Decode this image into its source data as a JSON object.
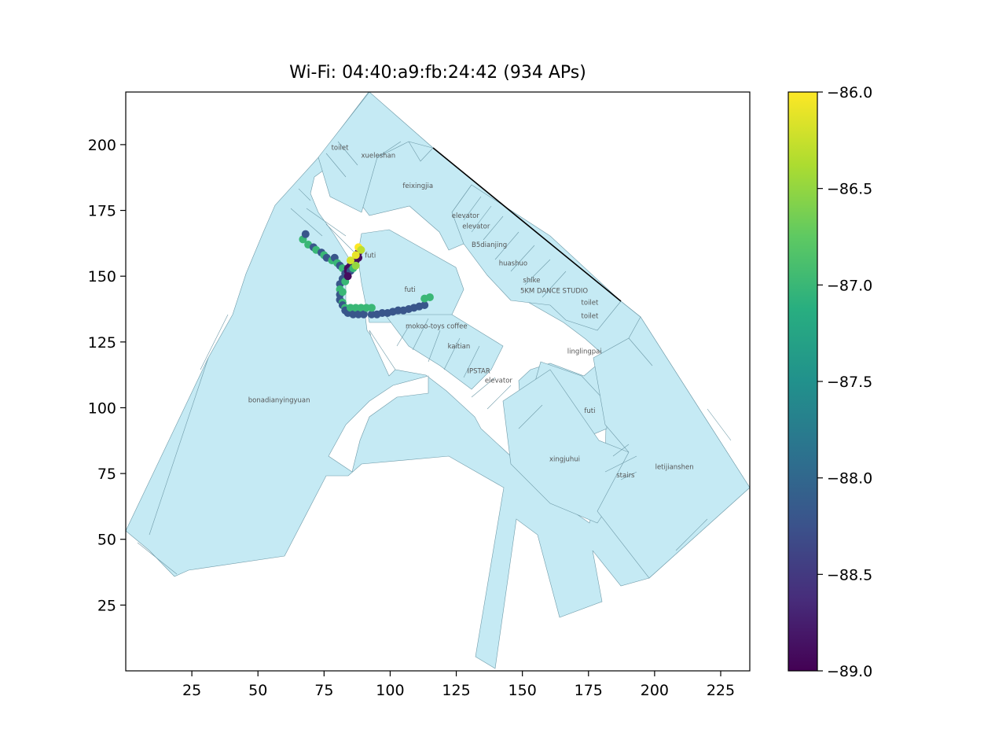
{
  "figure": {
    "title": "Wi-Fi: 04:40:a9:fb:24:42 (934 APs)"
  },
  "map_axes": {
    "xlim": [
      0,
      236
    ],
    "ylim": [
      0,
      220
    ],
    "x_ticks": [
      {
        "value": 25,
        "label": "25"
      },
      {
        "value": 50,
        "label": "50"
      },
      {
        "value": 75,
        "label": "75"
      },
      {
        "value": 100,
        "label": "100"
      },
      {
        "value": 125,
        "label": "125"
      },
      {
        "value": 150,
        "label": "150"
      },
      {
        "value": 175,
        "label": "175"
      },
      {
        "value": 200,
        "label": "200"
      },
      {
        "value": 225,
        "label": "225"
      }
    ],
    "y_ticks": [
      {
        "value": 25,
        "label": "25"
      },
      {
        "value": 50,
        "label": "50"
      },
      {
        "value": 75,
        "label": "75"
      },
      {
        "value": 100,
        "label": "100"
      },
      {
        "value": 125,
        "label": "125"
      },
      {
        "value": 150,
        "label": "150"
      },
      {
        "value": 175,
        "label": "175"
      },
      {
        "value": 200,
        "label": "200"
      }
    ]
  },
  "colorbar": {
    "colormap": "viridis",
    "range": [
      -89.0,
      -86.0
    ],
    "ticks": [
      {
        "value": -86.0,
        "label": "−86.0"
      },
      {
        "value": -86.5,
        "label": "−86.5"
      },
      {
        "value": -87.0,
        "label": "−87.0"
      },
      {
        "value": -87.5,
        "label": "−87.5"
      },
      {
        "value": -88.0,
        "label": "−88.0"
      },
      {
        "value": -88.5,
        "label": "−88.5"
      },
      {
        "value": -89.0,
        "label": "−89.0"
      }
    ]
  },
  "colors": {
    "floor_fill": "#c5eaf4",
    "floor_stroke": "#6e9aa8",
    "shop_label": "#555555"
  },
  "shop_labels": [
    {
      "text": "toilet",
      "x": 81,
      "y": 199
    },
    {
      "text": "xueleshan",
      "x": 95.5,
      "y": 196
    },
    {
      "text": "feixingjia",
      "x": 110.5,
      "y": 184.5
    },
    {
      "text": "elevator",
      "x": 128.5,
      "y": 173
    },
    {
      "text": "elevator",
      "x": 132.5,
      "y": 169
    },
    {
      "text": "B5dianjing",
      "x": 137.5,
      "y": 162
    },
    {
      "text": "futi",
      "x": 92.5,
      "y": 158
    },
    {
      "text": "huashuo",
      "x": 146.5,
      "y": 155
    },
    {
      "text": "shike",
      "x": 153.5,
      "y": 148.5
    },
    {
      "text": "futi",
      "x": 107.5,
      "y": 145
    },
    {
      "text": "5KM DANCE STUDIO",
      "x": 162,
      "y": 144.5
    },
    {
      "text": "toilet",
      "x": 175.5,
      "y": 140
    },
    {
      "text": "toilet",
      "x": 175.5,
      "y": 135
    },
    {
      "text": "mokoo-toys coffee",
      "x": 117.5,
      "y": 131
    },
    {
      "text": "kaitian",
      "x": 126,
      "y": 123.5
    },
    {
      "text": "linglingpai",
      "x": 173.5,
      "y": 121.5
    },
    {
      "text": "IPSTAR",
      "x": 133.5,
      "y": 114
    },
    {
      "text": "elevator",
      "x": 141,
      "y": 110.5
    },
    {
      "text": "bonadianyingyuan",
      "x": 58,
      "y": 103
    },
    {
      "text": "futi",
      "x": 175.5,
      "y": 99
    },
    {
      "text": "xingjuhui",
      "x": 166,
      "y": 80.5
    },
    {
      "text": "letijianshen",
      "x": 207.5,
      "y": 77.5
    },
    {
      "text": "stairs",
      "x": 189,
      "y": 74.5
    }
  ],
  "rssi_points": [
    {
      "x": 67,
      "y": 164,
      "rssi": -87.0
    },
    {
      "x": 68,
      "y": 166,
      "rssi": -88.2
    },
    {
      "x": 69,
      "y": 162,
      "rssi": -87.0
    },
    {
      "x": 71,
      "y": 161,
      "rssi": -88.2
    },
    {
      "x": 72,
      "y": 160,
      "rssi": -87.0
    },
    {
      "x": 74,
      "y": 159,
      "rssi": -88.2
    },
    {
      "x": 75,
      "y": 158,
      "rssi": -87.0
    },
    {
      "x": 76,
      "y": 157,
      "rssi": -88.2
    },
    {
      "x": 78,
      "y": 156,
      "rssi": -87.0
    },
    {
      "x": 79,
      "y": 157,
      "rssi": -88.2
    },
    {
      "x": 80,
      "y": 155,
      "rssi": -87.0
    },
    {
      "x": 81,
      "y": 154,
      "rssi": -88.2
    },
    {
      "x": 82,
      "y": 153,
      "rssi": -87.0
    },
    {
      "x": 83,
      "y": 151,
      "rssi": -88.2
    },
    {
      "x": 82,
      "y": 149,
      "rssi": -88.2
    },
    {
      "x": 81,
      "y": 147,
      "rssi": -88.2
    },
    {
      "x": 81,
      "y": 145,
      "rssi": -87.0
    },
    {
      "x": 81,
      "y": 143,
      "rssi": -88.2
    },
    {
      "x": 81,
      "y": 141,
      "rssi": -88.2
    },
    {
      "x": 82,
      "y": 140,
      "rssi": -87.0
    },
    {
      "x": 82,
      "y": 139,
      "rssi": -88.2
    },
    {
      "x": 83,
      "y": 138,
      "rssi": -87.0
    },
    {
      "x": 83,
      "y": 137,
      "rssi": -88.2
    },
    {
      "x": 84,
      "y": 136,
      "rssi": -88.2
    },
    {
      "x": 85,
      "y": 138,
      "rssi": -87.0
    },
    {
      "x": 86,
      "y": 135.5,
      "rssi": -88.2
    },
    {
      "x": 87,
      "y": 138,
      "rssi": -87.0
    },
    {
      "x": 88,
      "y": 135.5,
      "rssi": -88.2
    },
    {
      "x": 89,
      "y": 138,
      "rssi": -87.0
    },
    {
      "x": 90,
      "y": 135.5,
      "rssi": -88.2
    },
    {
      "x": 91,
      "y": 138,
      "rssi": -87.0
    },
    {
      "x": 93,
      "y": 135.5,
      "rssi": -88.2
    },
    {
      "x": 93,
      "y": 138,
      "rssi": -87.0
    },
    {
      "x": 95,
      "y": 135.5,
      "rssi": -88.2
    },
    {
      "x": 97,
      "y": 136,
      "rssi": -88.2
    },
    {
      "x": 99,
      "y": 136,
      "rssi": -88.2
    },
    {
      "x": 101,
      "y": 136.5,
      "rssi": -88.2
    },
    {
      "x": 103,
      "y": 137,
      "rssi": -88.2
    },
    {
      "x": 105,
      "y": 137,
      "rssi": -88.2
    },
    {
      "x": 107,
      "y": 137.5,
      "rssi": -88.2
    },
    {
      "x": 109,
      "y": 138,
      "rssi": -88.2
    },
    {
      "x": 111,
      "y": 138.5,
      "rssi": -88.2
    },
    {
      "x": 113,
      "y": 139,
      "rssi": -88.2
    },
    {
      "x": 113,
      "y": 141.5,
      "rssi": -87.0
    },
    {
      "x": 115,
      "y": 142,
      "rssi": -87.0
    },
    {
      "x": 82,
      "y": 144,
      "rssi": -87.0
    },
    {
      "x": 83,
      "y": 148,
      "rssi": -87.0
    },
    {
      "x": 84,
      "y": 152,
      "rssi": -88.9
    },
    {
      "x": 84,
      "y": 153,
      "rssi": -88.9
    },
    {
      "x": 85,
      "y": 154,
      "rssi": -88.9
    },
    {
      "x": 85,
      "y": 152,
      "rssi": -88.2
    },
    {
      "x": 86,
      "y": 155,
      "rssi": -88.9
    },
    {
      "x": 86,
      "y": 153,
      "rssi": -87.0
    },
    {
      "x": 87,
      "y": 156,
      "rssi": -88.9
    },
    {
      "x": 87,
      "y": 154,
      "rssi": -86.5
    },
    {
      "x": 88,
      "y": 157,
      "rssi": -88.9
    },
    {
      "x": 88,
      "y": 159,
      "rssi": -88.9
    },
    {
      "x": 88,
      "y": 161,
      "rssi": -86.0
    },
    {
      "x": 89,
      "y": 160,
      "rssi": -86.3
    },
    {
      "x": 87,
      "y": 158,
      "rssi": -86.1
    },
    {
      "x": 85,
      "y": 156,
      "rssi": -86.2
    },
    {
      "x": 84,
      "y": 150,
      "rssi": -88.9
    }
  ]
}
